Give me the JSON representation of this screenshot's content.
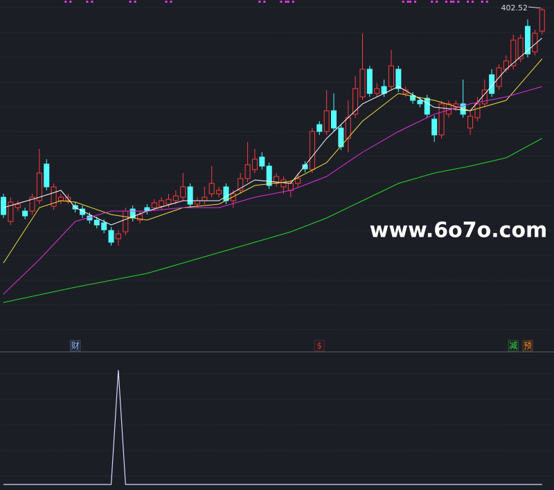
{
  "chart_data": {
    "type": "candlestick",
    "ylim": [
      262,
      406
    ],
    "grid": true,
    "up_color": "#ff3b3b",
    "down_color": "#54ffff",
    "open": [
      320.5,
      310,
      316,
      314.5,
      314.5,
      319,
      334.9,
      316.6,
      319,
      319,
      316.9,
      315.4,
      312.4,
      310.6,
      309.4,
      306.1,
      302.5,
      305.5,
      315.4,
      310.6,
      316,
      316,
      316.6,
      317.5,
      319,
      320.5,
      325,
      317.5,
      319,
      322,
      322,
      325,
      319,
      323.5,
      328.6,
      332.5,
      337.9,
      334,
      326.5,
      325,
      323.5,
      326.5,
      334.6,
      332.5,
      352,
      349,
      358,
      350.5,
      346,
      356.5,
      364,
      376,
      365.5,
      368.5,
      368.5,
      376,
      365.5,
      364.6,
      362.5,
      363.4,
      354.4,
      347.5,
      356.5,
      359.5,
      361,
      350.5,
      355,
      361,
      373.6,
      368.5,
      376,
      377.5,
      380.5,
      394.6,
      383.5,
      392.5
    ],
    "close": [
      313,
      318.4,
      317.5,
      312.4,
      320.5,
      331,
      325,
      325,
      320.5,
      320.5,
      315.4,
      313,
      310.6,
      308.5,
      306.4,
      301,
      304.6,
      314.5,
      311.5,
      313,
      314.5,
      318.1,
      319,
      319.6,
      321.1,
      325,
      317.5,
      319,
      320.5,
      326.5,
      323.5,
      319,
      322,
      328.6,
      334.6,
      337,
      334,
      325.6,
      329.5,
      328,
      326.5,
      328.6,
      332.8,
      349,
      349,
      358,
      350.5,
      342.4,
      355,
      367.6,
      376,
      365.5,
      367.6,
      365.5,
      377.5,
      367.6,
      367,
      362.5,
      361,
      356.5,
      347.5,
      361,
      361,
      361,
      356.5,
      355.6,
      361,
      367,
      365.5,
      376.6,
      379.6,
      388.6,
      389.5,
      382.6,
      391.6,
      401.8
    ],
    "high": [
      322,
      320.5,
      319,
      316,
      322,
      341.5,
      337,
      326.5,
      322,
      322,
      318.4,
      316.9,
      313.9,
      312.1,
      310.9,
      307.6,
      306.1,
      316,
      316.9,
      314.5,
      317.5,
      319.6,
      320.5,
      322,
      323.5,
      331,
      326.5,
      320.5,
      325,
      334,
      325,
      326.5,
      323.5,
      331,
      344.5,
      341.5,
      340,
      335.5,
      331,
      329.5,
      328,
      331,
      336.1,
      350.5,
      353.5,
      367,
      365.5,
      352,
      362.5,
      373,
      391.6,
      377.5,
      370,
      371.5,
      384.4,
      377.5,
      368.5,
      366.1,
      364,
      364.9,
      355.9,
      362.5,
      362.5,
      362.5,
      371.5,
      358,
      364,
      371.5,
      376,
      378.1,
      382,
      391,
      391,
      397.6,
      393.1,
      402.52
    ],
    "low": [
      311.5,
      308.5,
      314.5,
      311,
      313,
      317.5,
      323.5,
      315.1,
      317.5,
      317.5,
      313.9,
      311.5,
      309.1,
      307,
      304.9,
      299.5,
      299.5,
      304,
      310,
      309.1,
      313,
      314.5,
      315.1,
      316,
      317.5,
      319,
      316,
      316,
      317.5,
      320.5,
      320.5,
      317.5,
      316,
      322,
      327.1,
      331,
      332.5,
      324.1,
      325,
      322,
      320.5,
      325,
      331.3,
      331,
      347.5,
      347.5,
      349,
      340.9,
      340,
      355,
      362.5,
      364,
      364,
      364,
      367,
      366.1,
      364,
      361,
      359.5,
      355,
      344.5,
      346,
      355,
      358,
      355,
      347.5,
      353.5,
      359.5,
      364,
      367,
      374.5,
      376,
      379,
      381.1,
      382,
      391
    ],
    "moving_averages": [
      {
        "color": "#ffffff",
        "x": [
          0,
          5,
          8,
          10,
          15,
          20,
          25,
          30,
          35,
          40,
          45,
          50,
          55,
          60,
          65,
          70,
          75
        ],
        "values": [
          316,
          320.5,
          323.5,
          316,
          308.5,
          314.5,
          319,
          319,
          328,
          326.5,
          346,
          361,
          368.5,
          359.5,
          358,
          376,
          389.5
        ]
      },
      {
        "color": "#f0e040",
        "x": [
          0,
          5,
          8,
          10,
          15,
          20,
          25,
          30,
          35,
          40,
          45,
          50,
          55,
          60,
          65,
          70,
          75
        ],
        "values": [
          292,
          316,
          319,
          318.4,
          313,
          310.6,
          316,
          317.5,
          325.6,
          327.4,
          335.5,
          353.5,
          365.5,
          362.5,
          358,
          362.5,
          380.5
        ]
      },
      {
        "color": "#e030e0",
        "x": [
          0,
          5,
          10,
          15,
          20,
          25,
          30,
          35,
          40,
          45,
          50,
          55,
          60,
          65,
          70,
          75
        ],
        "values": [
          278.5,
          293.5,
          310,
          314.5,
          314.5,
          316,
          316,
          320.5,
          323.5,
          329.5,
          340,
          349,
          356.5,
          361,
          364,
          368.5
        ]
      },
      {
        "color": "#22dd22",
        "x": [
          0,
          10,
          20,
          30,
          40,
          45,
          50,
          55,
          60,
          65,
          70,
          75
        ],
        "values": [
          274.9,
          281.5,
          287.5,
          296.5,
          305.5,
          311.5,
          319,
          326.5,
          331,
          334,
          337.6,
          346
        ]
      }
    ],
    "indicator": {
      "color": "#d8d8ff",
      "ylim": [
        0,
        1.12
      ],
      "values": [
        0,
        0,
        0,
        0,
        0,
        0,
        0,
        0,
        0,
        0,
        0,
        0,
        0,
        0,
        0,
        0,
        1,
        0,
        0,
        0,
        0,
        0,
        0,
        0,
        0,
        0,
        0,
        0,
        0,
        0,
        0,
        0,
        0,
        0,
        0,
        0,
        0,
        0,
        0,
        0,
        0,
        0,
        0,
        0,
        0,
        0,
        0,
        0,
        0,
        0,
        0,
        0,
        0,
        0,
        0,
        0,
        0,
        0,
        0,
        0,
        0,
        0,
        0,
        0,
        0,
        0,
        0,
        0,
        0,
        0,
        0,
        0,
        0,
        0,
        0,
        0
      ]
    },
    "signals": [
      {
        "text": "财",
        "index": 10,
        "color": "#8fc3ff"
      },
      {
        "text": "$",
        "index": 44,
        "color": "#e03030"
      },
      {
        "text": "减",
        "index": 71,
        "color": "#33dd44"
      },
      {
        "text": "预",
        "index": 73,
        "color": "#ff8c1a"
      }
    ],
    "top_markers": {
      "color": "#e040e0",
      "x": [
        9,
        12,
        18,
        23,
        36,
        39,
        40,
        56,
        57,
        60,
        62,
        63,
        65,
        67
      ]
    },
    "watermark": "www.6o7o.com"
  }
}
